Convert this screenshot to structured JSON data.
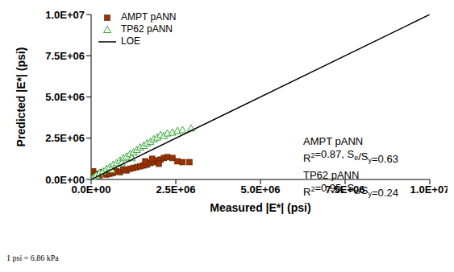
{
  "chart_data": {
    "type": "scatter",
    "x_label": "Measured |E*| (psi)",
    "y_label": "Predicted |E*| (psi)",
    "xlim": [
      0,
      10000000
    ],
    "ylim": [
      0,
      10000000
    ],
    "xticks": [
      {
        "value": 0,
        "label": "0.0E+00"
      },
      {
        "value": 2500000,
        "label": "2.5E+06"
      },
      {
        "value": 5000000,
        "label": "5.0E+06"
      },
      {
        "value": 7500000,
        "label": "7.5E+06"
      },
      {
        "value": 10000000,
        "label": "1.0E+07"
      }
    ],
    "yticks": [
      {
        "value": 0,
        "label": "0.0E+00"
      },
      {
        "value": 2500000,
        "label": "2.5E+06"
      },
      {
        "value": 5000000,
        "label": "5.0E+06"
      },
      {
        "value": 7500000,
        "label": "7.5E+06"
      },
      {
        "value": 10000000,
        "label": "1.0E+07"
      }
    ],
    "grid": false,
    "legend": "upper left",
    "series": [
      {
        "name": "AMPT pANN",
        "color": "#993300",
        "marker": "square",
        "type": "scatter",
        "values": [
          [
            20000,
            100000
          ],
          [
            40000,
            300000
          ],
          [
            60000,
            500000
          ],
          [
            80000,
            200000
          ],
          [
            150000,
            350000
          ],
          [
            250000,
            250000
          ],
          [
            350000,
            450000
          ],
          [
            450000,
            300000
          ],
          [
            550000,
            350000
          ],
          [
            650000,
            400000
          ],
          [
            750000,
            500000
          ],
          [
            850000,
            450000
          ],
          [
            950000,
            600000
          ],
          [
            1050000,
            550000
          ],
          [
            1150000,
            650000
          ],
          [
            1250000,
            700000
          ],
          [
            1350000,
            750000
          ],
          [
            1450000,
            800000
          ],
          [
            1550000,
            850000
          ],
          [
            1650000,
            900000
          ],
          [
            1750000,
            1000000
          ],
          [
            1850000,
            1050000
          ],
          [
            1950000,
            1150000
          ],
          [
            2050000,
            1200000
          ],
          [
            2150000,
            1300000
          ],
          [
            2250000,
            1350000
          ],
          [
            2400000,
            1300000
          ],
          [
            2550000,
            1100000
          ],
          [
            2700000,
            1050000
          ],
          [
            2900000,
            1050000
          ],
          [
            2000000,
            950000
          ],
          [
            1600000,
            1100000
          ],
          [
            1800000,
            1250000
          ]
        ]
      },
      {
        "name": "TP62 pANN",
        "color": "#339933",
        "marker": "triangle_open",
        "type": "scatter",
        "values": [
          [
            30000,
            50000
          ],
          [
            80000,
            150000
          ],
          [
            150000,
            250000
          ],
          [
            250000,
            400000
          ],
          [
            350000,
            500000
          ],
          [
            450000,
            650000
          ],
          [
            550000,
            750000
          ],
          [
            650000,
            900000
          ],
          [
            750000,
            1000000
          ],
          [
            850000,
            1150000
          ],
          [
            950000,
            1300000
          ],
          [
            1050000,
            1400000
          ],
          [
            1150000,
            1550000
          ],
          [
            1250000,
            1650000
          ],
          [
            1350000,
            1800000
          ],
          [
            1450000,
            1950000
          ],
          [
            1550000,
            2050000
          ],
          [
            1650000,
            2200000
          ],
          [
            1750000,
            2300000
          ],
          [
            1850000,
            2450000
          ],
          [
            1950000,
            2550000
          ],
          [
            2050000,
            2700000
          ],
          [
            2150000,
            2650000
          ],
          [
            2250000,
            2800000
          ],
          [
            2400000,
            2850000
          ],
          [
            2550000,
            2950000
          ],
          [
            2700000,
            3000000
          ],
          [
            2950000,
            3100000
          ],
          [
            1200000,
            1300000
          ],
          [
            900000,
            1000000
          ],
          [
            600000,
            600000
          ]
        ]
      },
      {
        "name": "LOE",
        "color": "#000000",
        "type": "line",
        "line_style": "solid",
        "values": [
          [
            0,
            0
          ],
          [
            10000000,
            10000000
          ]
        ]
      }
    ],
    "annotations": [
      "AMPT pANN",
      "R2=0.87, Se/Sy=0.63",
      "TP62 pANN",
      "R2=0.95, Se/Sy=0.24"
    ],
    "footnote": "1 psi = 6.86 kPa"
  }
}
